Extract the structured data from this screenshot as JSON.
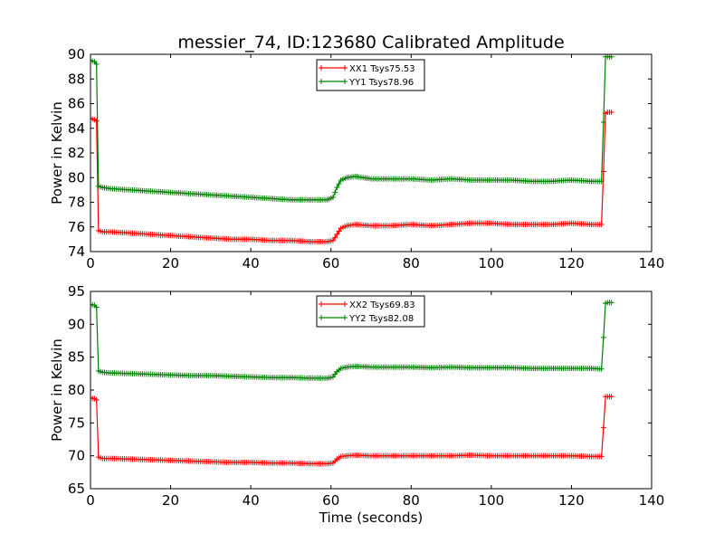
{
  "figure": {
    "title": "messier_74, ID:123680 Calibrated Amplitude"
  },
  "chart_data": [
    {
      "type": "line",
      "title": "messier_74, ID:123680 Calibrated Amplitude",
      "xlabel": "",
      "ylabel": "Power in Kelvin",
      "xlim": [
        0,
        140
      ],
      "ylim": [
        74,
        90
      ],
      "xticks": [
        0,
        20,
        40,
        60,
        80,
        100,
        120,
        140
      ],
      "yticks": [
        74,
        76,
        78,
        80,
        82,
        84,
        86,
        88,
        90
      ],
      "grid": false,
      "legend_position": "top-center",
      "series": [
        {
          "name": "XX1 Tsys75.53",
          "color": "#ff0000",
          "marker": "+",
          "x": [
            0,
            1,
            1.5,
            2,
            3,
            5,
            10,
            15,
            20,
            25,
            30,
            35,
            40,
            45,
            50,
            55,
            59,
            60.5,
            61.5,
            62.5,
            64,
            66,
            70,
            75,
            80,
            85,
            90,
            95,
            100,
            105,
            110,
            115,
            120,
            125,
            127.5,
            128,
            128.5,
            129,
            130
          ],
          "y": [
            84.8,
            84.7,
            84.6,
            75.7,
            75.6,
            75.6,
            75.5,
            75.4,
            75.3,
            75.2,
            75.1,
            75.0,
            75.0,
            74.9,
            74.9,
            74.8,
            74.8,
            74.9,
            75.4,
            75.9,
            76.1,
            76.2,
            76.1,
            76.1,
            76.2,
            76.1,
            76.2,
            76.3,
            76.3,
            76.2,
            76.2,
            76.2,
            76.3,
            76.2,
            76.2,
            80.5,
            85.2,
            85.3,
            85.3
          ]
        },
        {
          "name": "YY1 Tsys78.96",
          "color": "#008000",
          "marker": "+",
          "x": [
            0,
            1,
            1.5,
            2,
            3,
            5,
            10,
            15,
            20,
            25,
            30,
            35,
            40,
            45,
            50,
            55,
            59,
            60.5,
            61.5,
            62.5,
            64,
            66,
            70,
            75,
            80,
            85,
            90,
            95,
            100,
            105,
            110,
            115,
            120,
            125,
            127.5,
            128,
            128.5,
            129,
            130
          ],
          "y": [
            89.5,
            89.4,
            89.2,
            79.3,
            79.2,
            79.1,
            79.0,
            78.9,
            78.8,
            78.7,
            78.6,
            78.5,
            78.4,
            78.3,
            78.2,
            78.2,
            78.2,
            78.4,
            79.2,
            79.8,
            80.0,
            80.1,
            79.9,
            79.9,
            79.9,
            79.8,
            79.9,
            79.8,
            79.8,
            79.8,
            79.7,
            79.7,
            79.8,
            79.7,
            79.7,
            84.5,
            89.8,
            89.8,
            89.8
          ]
        }
      ]
    },
    {
      "type": "line",
      "title": "",
      "xlabel": "Time (seconds)",
      "ylabel": "Power in Kelvin",
      "xlim": [
        0,
        140
      ],
      "ylim": [
        65,
        95
      ],
      "xticks": [
        0,
        20,
        40,
        60,
        80,
        100,
        120,
        140
      ],
      "yticks": [
        65,
        70,
        75,
        80,
        85,
        90,
        95
      ],
      "grid": false,
      "legend_position": "top-center",
      "series": [
        {
          "name": "XX2 Tsys69.83",
          "color": "#ff0000",
          "marker": "+",
          "x": [
            0,
            1,
            1.5,
            2,
            3,
            5,
            10,
            15,
            20,
            25,
            30,
            35,
            40,
            45,
            50,
            55,
            59,
            60.5,
            61.5,
            62.5,
            64,
            66,
            70,
            75,
            80,
            85,
            90,
            95,
            100,
            105,
            110,
            115,
            120,
            125,
            127.5,
            128,
            128.5,
            129,
            130
          ],
          "y": [
            78.8,
            78.7,
            78.5,
            69.8,
            69.6,
            69.6,
            69.5,
            69.4,
            69.3,
            69.2,
            69.1,
            69.0,
            69.0,
            68.9,
            68.9,
            68.8,
            68.8,
            68.9,
            69.5,
            69.9,
            70.0,
            70.1,
            70.0,
            70.0,
            70.0,
            70.0,
            70.0,
            70.1,
            70.0,
            70.0,
            70.0,
            70.0,
            70.0,
            69.9,
            69.9,
            74.3,
            79.0,
            79.0,
            79.0
          ]
        },
        {
          "name": "YY2 Tsys82.08",
          "color": "#008000",
          "marker": "+",
          "x": [
            0,
            1,
            1.5,
            2,
            3,
            5,
            10,
            15,
            20,
            25,
            30,
            35,
            40,
            45,
            50,
            55,
            59,
            60.5,
            61.5,
            62.5,
            64,
            66,
            70,
            75,
            80,
            85,
            90,
            95,
            100,
            105,
            110,
            115,
            120,
            125,
            127.5,
            128,
            128.5,
            129,
            130
          ],
          "y": [
            93.0,
            92.9,
            92.6,
            82.9,
            82.7,
            82.6,
            82.5,
            82.4,
            82.3,
            82.2,
            82.2,
            82.1,
            82.0,
            81.9,
            81.9,
            81.8,
            81.8,
            82.0,
            82.8,
            83.3,
            83.5,
            83.6,
            83.5,
            83.5,
            83.5,
            83.4,
            83.5,
            83.4,
            83.4,
            83.4,
            83.3,
            83.3,
            83.3,
            83.3,
            83.2,
            88.0,
            93.2,
            93.3,
            93.3
          ]
        }
      ]
    }
  ]
}
